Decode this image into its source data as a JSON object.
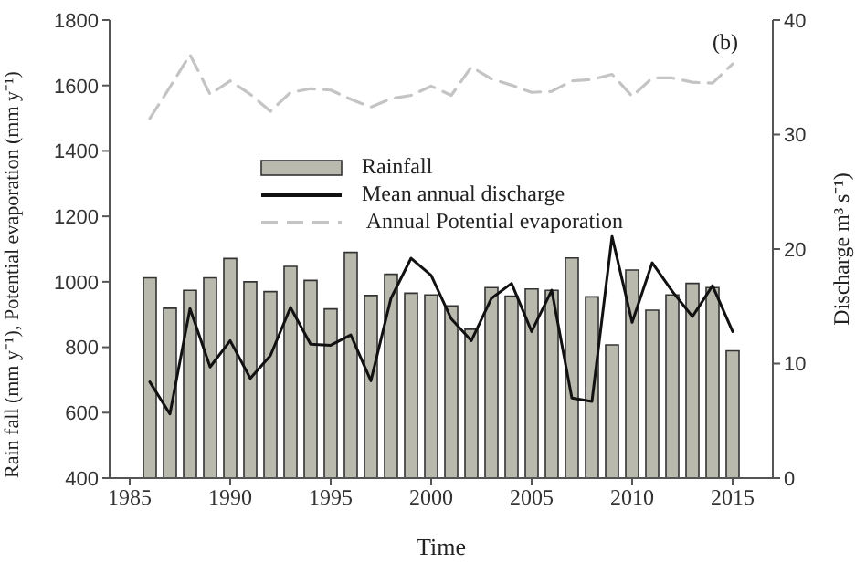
{
  "chart_data": {
    "type": "bar",
    "xlabel": "Time",
    "ylabel": "Rain fall (mm y⁻¹), Potential evaporation (mm y⁻¹)",
    "y2label": "Discharge m³ s⁻¹)",
    "annotations": [
      "(b)"
    ],
    "x": [
      1986,
      1987,
      1988,
      1989,
      1990,
      1991,
      1992,
      1993,
      1994,
      1995,
      1996,
      1997,
      1998,
      1999,
      2000,
      2001,
      2002,
      2003,
      2004,
      2005,
      2006,
      2007,
      2008,
      2009,
      2010,
      2011,
      2012,
      2013,
      2014,
      2015
    ],
    "series": [
      {
        "name": "Rainfall",
        "type": "bar",
        "color": "#b9b9ad",
        "values": [
          1012,
          919,
          974,
          1012,
          1071,
          1000,
          970,
          1047,
          1004,
          917,
          1090,
          958,
          1023,
          965,
          960,
          926,
          855,
          982,
          956,
          978,
          974,
          1073,
          954,
          807,
          1036,
          913,
          960,
          995,
          982,
          789
        ]
      },
      {
        "name": "Mean annual discharge",
        "type": "line",
        "axis": "y2",
        "color": "#111111",
        "line_style": "solid",
        "values": [
          8.4,
          5.6,
          14.8,
          9.7,
          12.0,
          8.7,
          10.7,
          14.9,
          11.7,
          11.6,
          12.5,
          8.5,
          15.7,
          19.2,
          17.7,
          13.9,
          12.0,
          15.7,
          17.0,
          12.8,
          16.4,
          7.0,
          6.7,
          21.1,
          13.6,
          18.8,
          16.3,
          14.1,
          16.8,
          12.8
        ]
      },
      {
        "name": " Annual Potential evaporation",
        "type": "line",
        "color": "#c4c4c4",
        "line_style": "dashed",
        "values": [
          1499,
          1595,
          1694,
          1573,
          1614,
          1573,
          1521,
          1579,
          1590,
          1586,
          1558,
          1534,
          1560,
          1570,
          1598,
          1570,
          1657,
          1620,
          1601,
          1579,
          1582,
          1614,
          1618,
          1634,
          1567,
          1623,
          1623,
          1610,
          1607,
          1666
        ]
      }
    ],
    "xlim": [
      1984,
      2017
    ],
    "xticks": [
      1985,
      1990,
      1995,
      2000,
      2005,
      2010,
      2015
    ],
    "ylim": [
      400,
      1800
    ],
    "yticks": [
      400,
      600,
      800,
      1000,
      1200,
      1400,
      1600,
      1800
    ],
    "y2lim": [
      0,
      40
    ],
    "y2ticks": [
      0,
      10,
      20,
      30,
      40
    ],
    "grid": false,
    "legend": "top",
    "marker": "none"
  }
}
